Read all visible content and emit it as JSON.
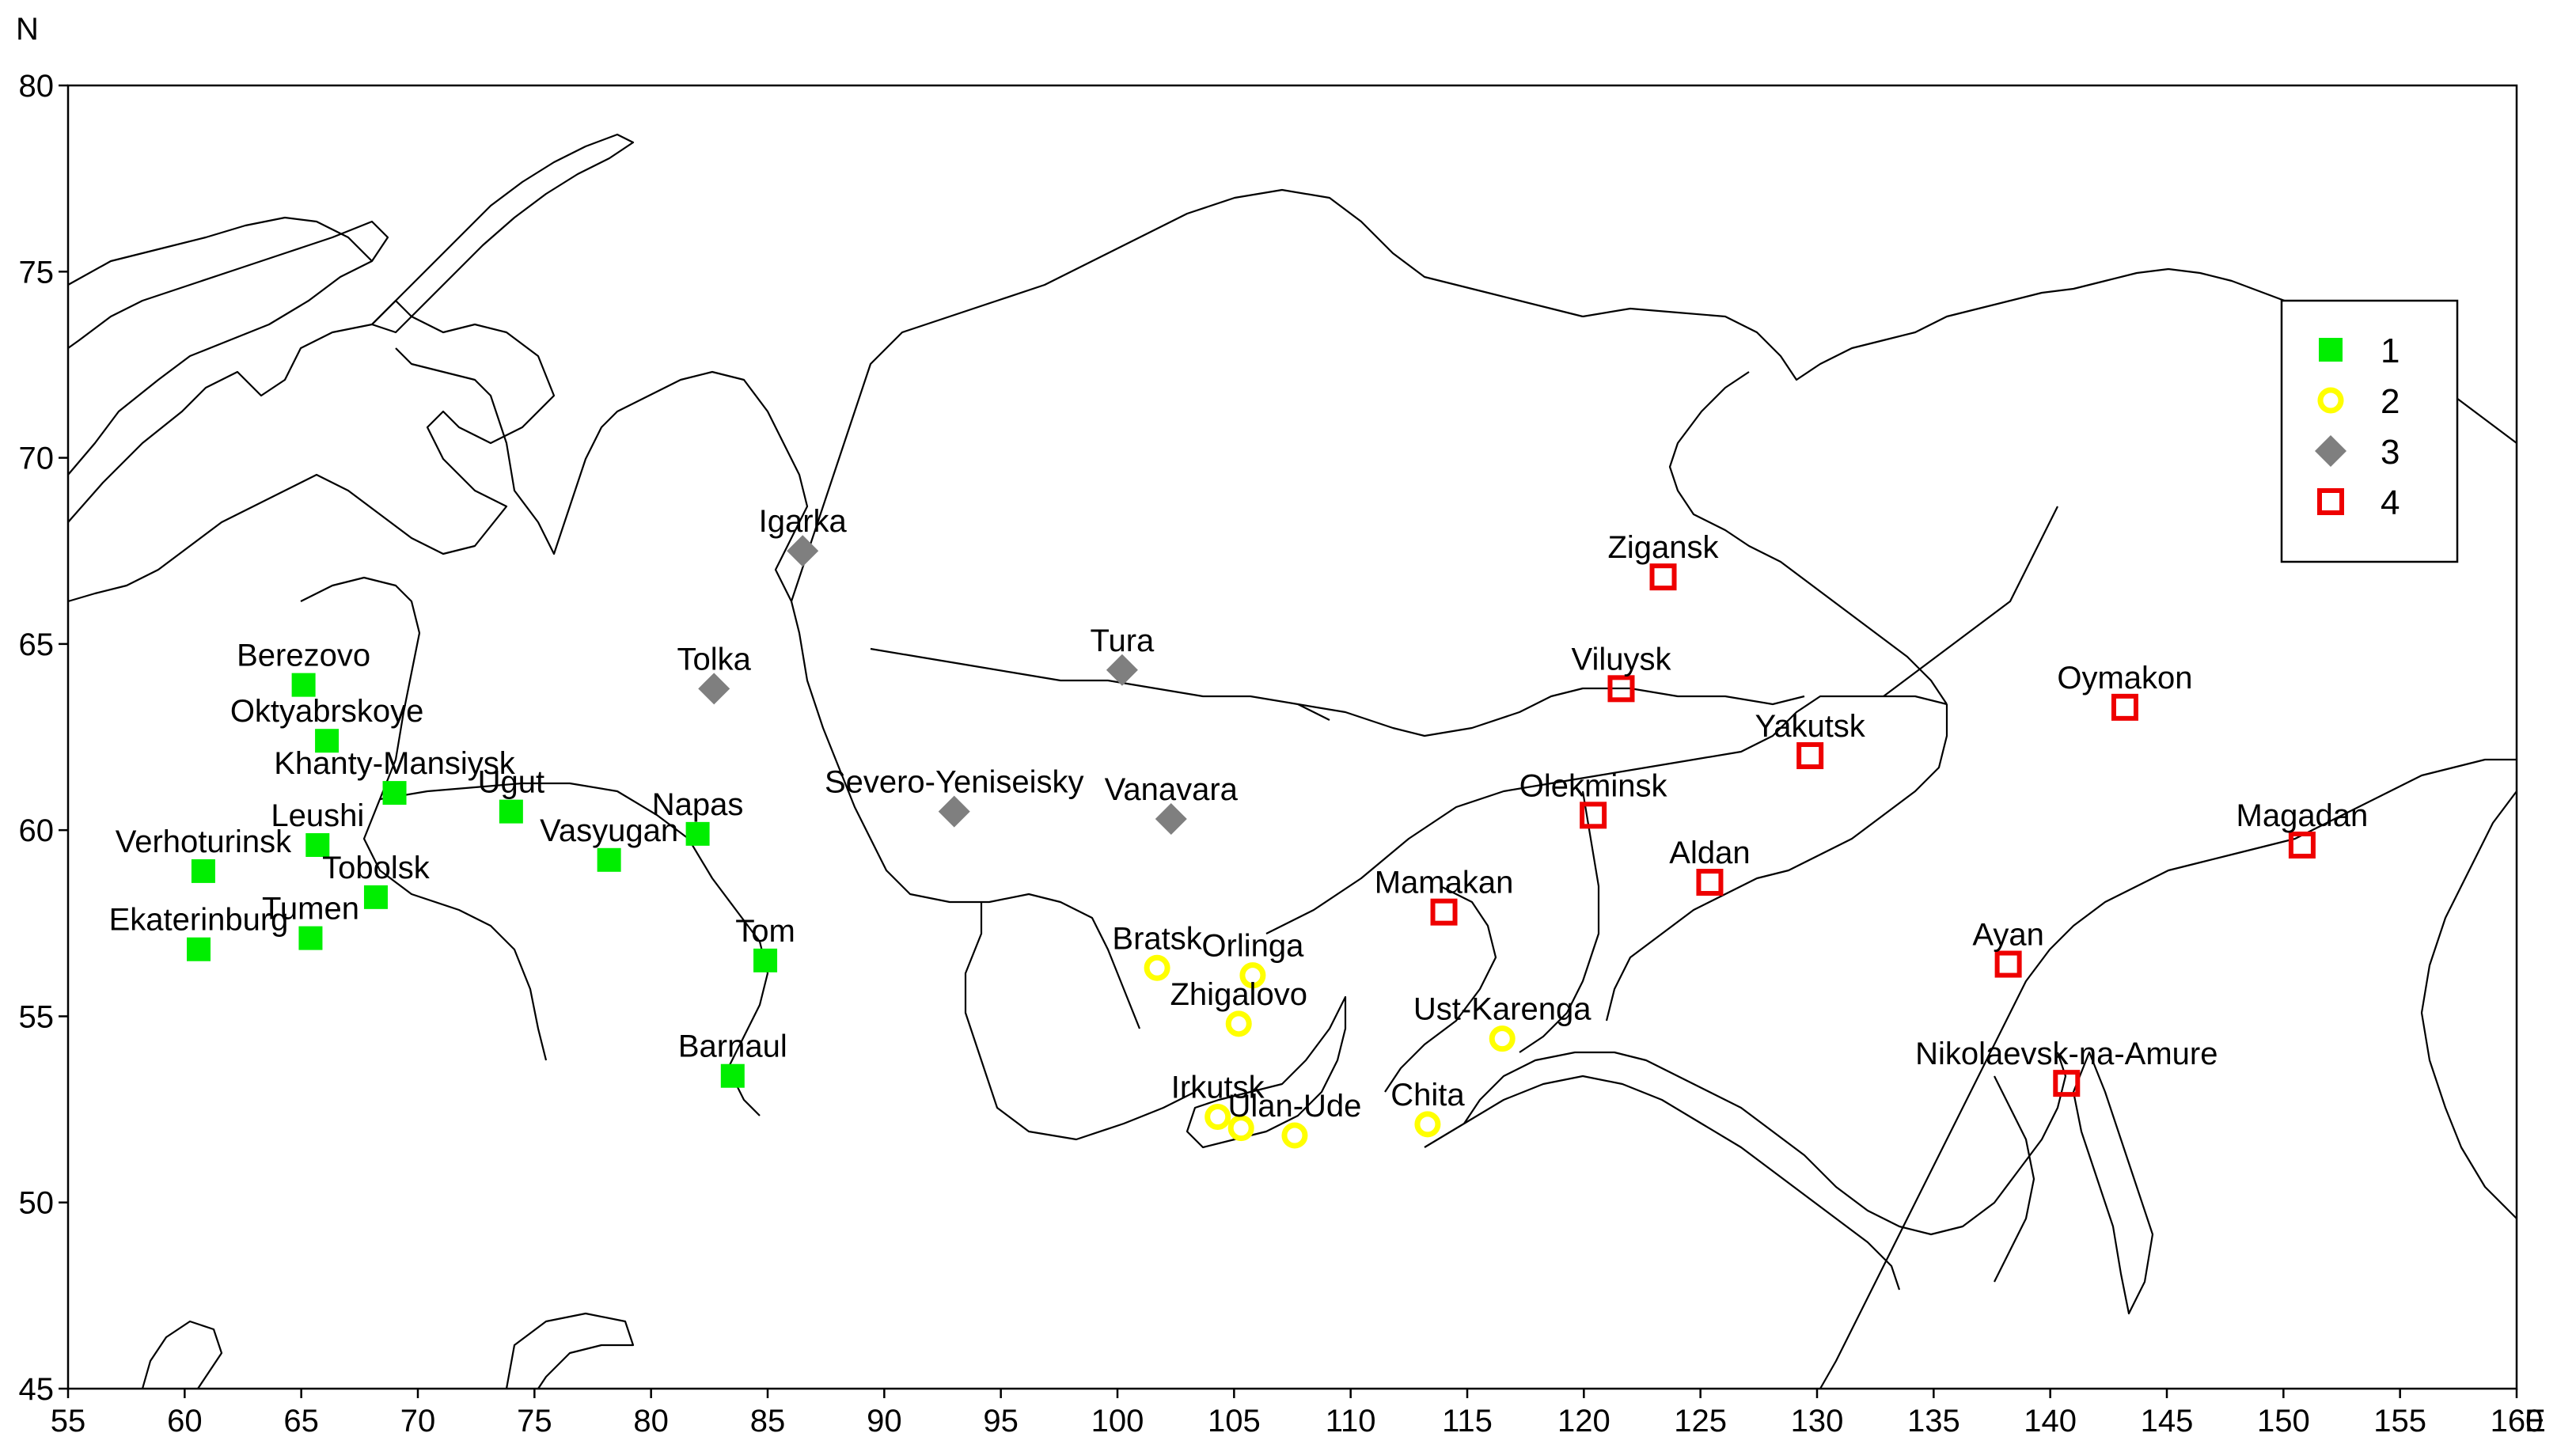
{
  "chart_data": {
    "type": "scatter",
    "x_axis": {
      "label": "E",
      "range": [
        55,
        160
      ],
      "ticks": [
        55,
        60,
        65,
        70,
        75,
        80,
        85,
        90,
        95,
        100,
        105,
        110,
        115,
        120,
        125,
        130,
        135,
        140,
        145,
        150,
        155,
        160
      ]
    },
    "y_axis": {
      "label": "N",
      "range": [
        45,
        80
      ],
      "ticks": [
        45,
        50,
        55,
        60,
        65,
        70,
        75,
        80
      ]
    },
    "legend": {
      "placement": "top-right",
      "entries": [
        {
          "group": "1",
          "marker": "square-filled",
          "color": "#00ee00"
        },
        {
          "group": "2",
          "marker": "circle-open",
          "color": "#ffff00"
        },
        {
          "group": "3",
          "marker": "diamond-filled",
          "color": "#7f7f7f"
        },
        {
          "group": "4",
          "marker": "square-open",
          "color": "#ee0000"
        }
      ]
    },
    "series": [
      {
        "group": "1",
        "points": [
          {
            "name": "Berezovo",
            "lon": 65.1,
            "lat": 63.9
          },
          {
            "name": "Oktyabrskoye",
            "lon": 66.1,
            "lat": 62.4
          },
          {
            "name": "Khanty-Mansiysk",
            "lon": 69.0,
            "lat": 61.0
          },
          {
            "name": "Ugut",
            "lon": 74.0,
            "lat": 60.5
          },
          {
            "name": "Leushi",
            "lon": 65.7,
            "lat": 59.6
          },
          {
            "name": "Napas",
            "lon": 82.0,
            "lat": 59.9
          },
          {
            "name": "Vasyugan",
            "lon": 78.2,
            "lat": 59.2
          },
          {
            "name": "Verhoturinsk",
            "lon": 60.8,
            "lat": 58.9
          },
          {
            "name": "Tobolsk",
            "lon": 68.2,
            "lat": 58.2
          },
          {
            "name": "Tumen",
            "lon": 65.4,
            "lat": 57.1
          },
          {
            "name": "Ekaterinburg",
            "lon": 60.6,
            "lat": 56.8
          },
          {
            "name": "Tom",
            "lon": 84.9,
            "lat": 56.5
          },
          {
            "name": "Barnaul",
            "lon": 83.5,
            "lat": 53.4
          }
        ]
      },
      {
        "group": "2",
        "points": [
          {
            "name": "Bratsk",
            "lon": 101.7,
            "lat": 56.3
          },
          {
            "name": "Orlinga",
            "lon": 105.8,
            "lat": 56.1
          },
          {
            "name": "Zhigalovo",
            "lon": 105.2,
            "lat": 54.8
          },
          {
            "name": "Ust-Karenga",
            "lon": 116.5,
            "lat": 54.4
          },
          {
            "name": "Irkutsk",
            "lon": 104.3,
            "lat": 52.3
          },
          {
            "name": "Ulan-Ude",
            "lon": 107.6,
            "lat": 51.8
          },
          {
            "name": "Chita",
            "lon": 113.3,
            "lat": 52.1
          },
          {
            "name": "",
            "lon": 105.3,
            "lat": 52.0
          }
        ]
      },
      {
        "group": "3",
        "points": [
          {
            "name": "Igarka",
            "lon": 86.5,
            "lat": 67.5
          },
          {
            "name": "Tolka",
            "lon": 82.7,
            "lat": 63.8
          },
          {
            "name": "Tura",
            "lon": 100.2,
            "lat": 64.3
          },
          {
            "name": "Severo-Yeniseisky",
            "lon": 93.0,
            "lat": 60.5
          },
          {
            "name": "Vanavara",
            "lon": 102.3,
            "lat": 60.3
          }
        ]
      },
      {
        "group": "4",
        "points": [
          {
            "name": "Zigansk",
            "lon": 123.4,
            "lat": 66.8
          },
          {
            "name": "Viluysk",
            "lon": 121.6,
            "lat": 63.8
          },
          {
            "name": "Oymakon",
            "lon": 143.2,
            "lat": 63.3
          },
          {
            "name": "Yakutsk",
            "lon": 129.7,
            "lat": 62.0
          },
          {
            "name": "Olekminsk",
            "lon": 120.4,
            "lat": 60.4
          },
          {
            "name": "Magadan",
            "lon": 150.8,
            "lat": 59.6
          },
          {
            "name": "Aldan",
            "lon": 125.4,
            "lat": 58.6
          },
          {
            "name": "Mamakan",
            "lon": 114.0,
            "lat": 57.8
          },
          {
            "name": "Ayan",
            "lon": 138.2,
            "lat": 56.4
          },
          {
            "name": "Nikolaevsk-na-Amure",
            "lon": 140.7,
            "lat": 53.2
          }
        ]
      }
    ]
  }
}
